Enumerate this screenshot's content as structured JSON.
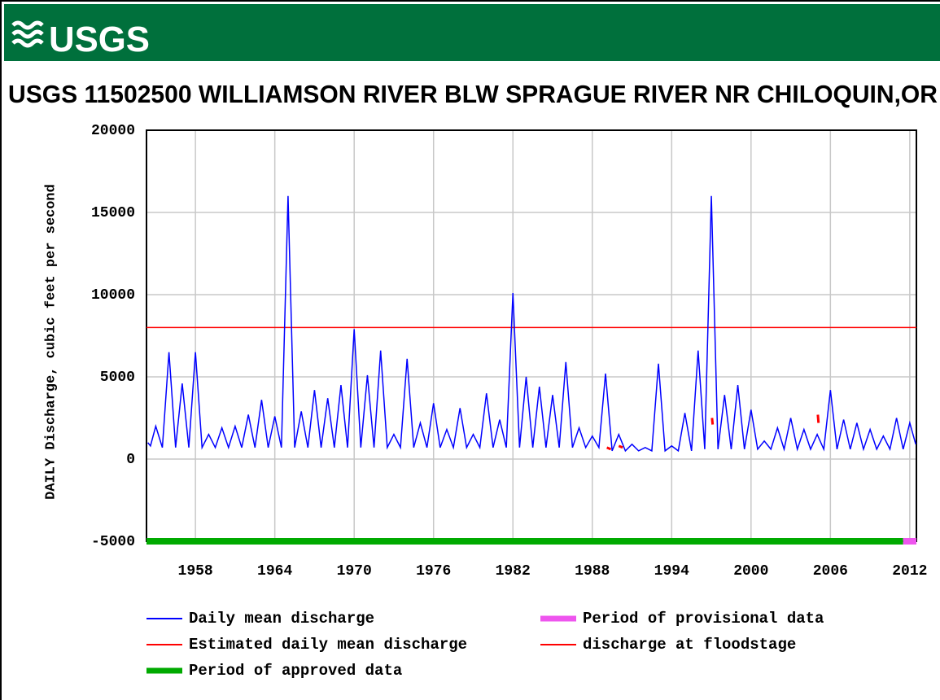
{
  "logo": "USGS",
  "chart_data": {
    "type": "line",
    "title": "USGS 11502500 WILLIAMSON RIVER BLW SPRAGUE RIVER NR CHILOQUIN,OR",
    "y_label": "DAILY Discharge, cubic feet per second",
    "xlim": [
      1954.3,
      2012.5
    ],
    "xticks": [
      1958,
      1964,
      1970,
      1976,
      1982,
      1988,
      1994,
      2000,
      2006,
      2012
    ],
    "ylim": [
      -5000,
      20000
    ],
    "yticks": [
      -5000,
      0,
      5000,
      10000,
      15000,
      20000
    ],
    "grid": true,
    "series": [
      {
        "name": "Daily mean discharge",
        "color": "#0000ff",
        "x": [
          1954.4,
          1954.6,
          1955,
          1955.5,
          1956,
          1956.5,
          1957,
          1957.5,
          1958,
          1958.5,
          1959,
          1959.5,
          1960,
          1960.5,
          1961,
          1961.5,
          1962,
          1962.5,
          1963,
          1963.5,
          1964,
          1964.5,
          1965,
          1965.5,
          1966,
          1966.5,
          1967,
          1967.5,
          1968,
          1968.5,
          1969,
          1969.5,
          1970,
          1970.5,
          1971,
          1971.5,
          1972,
          1972.5,
          1973,
          1973.5,
          1974,
          1974.5,
          1975,
          1975.5,
          1976,
          1976.5,
          1977,
          1977.5,
          1978,
          1978.5,
          1979,
          1979.5,
          1980,
          1980.5,
          1981,
          1981.5,
          1982,
          1982.5,
          1983,
          1983.5,
          1984,
          1984.5,
          1985,
          1985.5,
          1986,
          1986.5,
          1987,
          1987.5,
          1988,
          1988.5,
          1989,
          1989.5,
          1990,
          1990.5,
          1991,
          1991.5,
          1992,
          1992.5,
          1993,
          1993.5,
          1994,
          1994.5,
          1995,
          1995.5,
          1996,
          1996.5,
          1997,
          1997.5,
          1998,
          1998.5,
          1999,
          1999.5,
          2000,
          2000.5,
          2001,
          2001.5,
          2002,
          2002.5,
          2003,
          2003.5,
          2004,
          2004.5,
          2005,
          2005.5,
          2006,
          2006.5,
          2007,
          2007.5,
          2008,
          2008.5,
          2009,
          2009.5,
          2010,
          2010.5,
          2011,
          2011.5,
          2012,
          2012.45
        ],
        "values": [
          1000,
          800,
          2000,
          700,
          6500,
          700,
          4600,
          700,
          6500,
          700,
          1500,
          700,
          1900,
          700,
          2000,
          700,
          2700,
          700,
          3600,
          700,
          2600,
          700,
          16000,
          700,
          2900,
          700,
          4200,
          700,
          3700,
          700,
          4500,
          700,
          7900,
          700,
          5100,
          700,
          6600,
          700,
          1500,
          700,
          6100,
          700,
          2200,
          700,
          3400,
          700,
          1800,
          700,
          3100,
          700,
          1500,
          700,
          4000,
          700,
          2400,
          700,
          10100,
          700,
          5000,
          700,
          4400,
          700,
          3900,
          700,
          5900,
          700,
          1900,
          700,
          1400,
          700,
          5200,
          500,
          1500,
          500,
          900,
          500,
          700,
          500,
          5800,
          500,
          800,
          500,
          2800,
          500,
          6600,
          600,
          16000,
          600,
          3900,
          600,
          4500,
          600,
          3000,
          600,
          1100,
          600,
          1900,
          600,
          2500,
          600,
          1800,
          600,
          1500,
          600,
          4200,
          600,
          2400,
          600,
          2200,
          600,
          1800,
          600,
          1400,
          600,
          2500,
          600,
          2200,
          900
        ]
      },
      {
        "name": "Estimated daily mean discharge",
        "color": "#ff0000",
        "x": [
          1989.1,
          1989.4,
          null,
          1990.0,
          1990.3,
          null,
          1997.05,
          1997.1,
          null,
          2005.05,
          2005.1
        ],
        "values": [
          700,
          600,
          null,
          800,
          700,
          null,
          2500,
          2100,
          null,
          2700,
          2200
        ]
      }
    ],
    "floodstage": {
      "name": "discharge at floodstage",
      "value": 8000,
      "color": "#ff0000"
    },
    "periods": [
      {
        "name": "Period of approved data",
        "color": "#00aa00",
        "start": 1954.3,
        "end": 2011.5
      },
      {
        "name": "Period of provisional data",
        "color": "#ee55ee",
        "start": 2011.5,
        "end": 2012.5
      }
    ]
  }
}
